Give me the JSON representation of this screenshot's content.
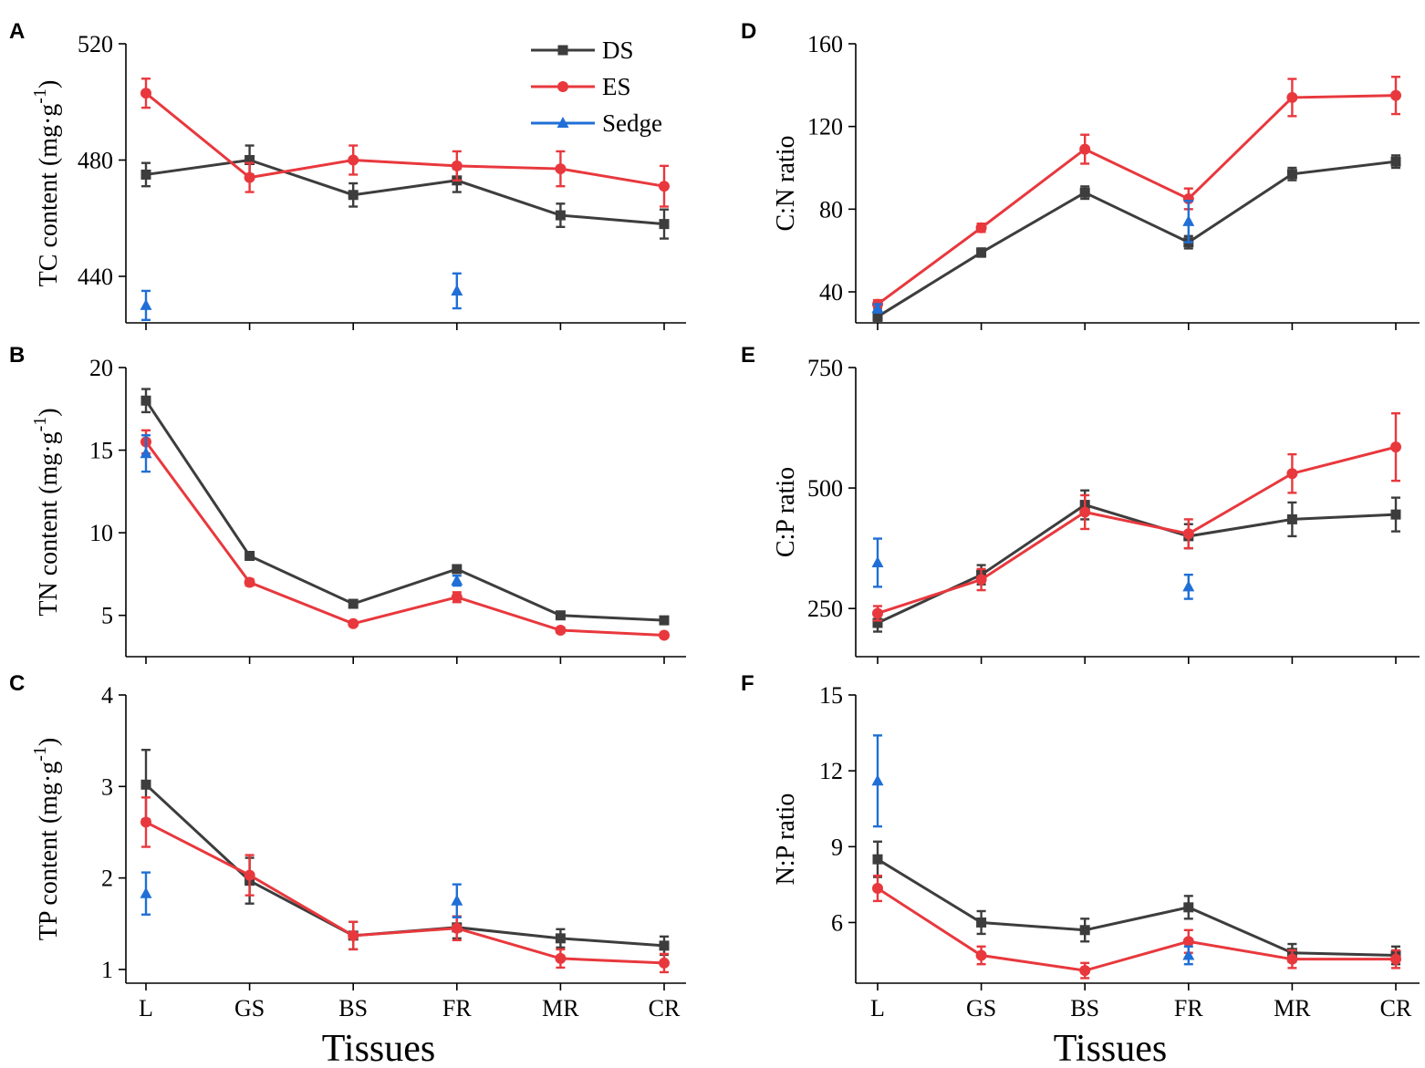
{
  "colors": {
    "DS": "#3d3d3d",
    "ES": "#e8383d",
    "Sedge": "#1f6fd6",
    "axis": "#000000"
  },
  "legend": [
    {
      "name": "DS",
      "marker": "square"
    },
    {
      "name": "ES",
      "marker": "circle"
    },
    {
      "name": "Sedge",
      "marker": "triangle"
    }
  ],
  "chart_data": [
    {
      "type": "line",
      "panel": "A",
      "ylabel_parts": [
        "TC content (mg·g",
        "-1",
        ")"
      ],
      "xlabel": "",
      "categories": [
        "L",
        "GS",
        "BS",
        "FR",
        "MR",
        "CR"
      ],
      "ylim": [
        424,
        520
      ],
      "yticks": [
        440,
        480,
        520
      ],
      "series": [
        {
          "name": "DS",
          "values": [
            475,
            480,
            468,
            473,
            461,
            458
          ],
          "errors": [
            4,
            5,
            4,
            4,
            4,
            5
          ]
        },
        {
          "name": "ES",
          "values": [
            503,
            474,
            480,
            478,
            477,
            471
          ],
          "errors": [
            5,
            5,
            5,
            5,
            6,
            7
          ]
        },
        {
          "name": "Sedge",
          "values": [
            430,
            null,
            null,
            435,
            null,
            null
          ],
          "errors": [
            5,
            null,
            null,
            6,
            null,
            null
          ]
        }
      ]
    },
    {
      "type": "line",
      "panel": "B",
      "ylabel_parts": [
        "TN content (mg·g",
        "-1",
        ")"
      ],
      "xlabel": "",
      "categories": [
        "L",
        "GS",
        "BS",
        "FR",
        "MR",
        "CR"
      ],
      "ylim": [
        2.5,
        20
      ],
      "yticks": [
        5,
        10,
        15,
        20
      ],
      "series": [
        {
          "name": "DS",
          "values": [
            18.0,
            8.6,
            5.7,
            7.8,
            5.0,
            4.7
          ],
          "errors": [
            0.7,
            0.2,
            0.2,
            0.2,
            0.15,
            0.15
          ]
        },
        {
          "name": "ES",
          "values": [
            15.5,
            7.0,
            4.5,
            6.1,
            4.1,
            3.8
          ],
          "errors": [
            0.7,
            0.2,
            0.15,
            0.3,
            0.15,
            0.15
          ]
        },
        {
          "name": "Sedge",
          "values": [
            14.8,
            null,
            null,
            7.1,
            null,
            null
          ],
          "errors": [
            1.1,
            null,
            null,
            0.3,
            null,
            null
          ]
        }
      ]
    },
    {
      "type": "line",
      "panel": "C",
      "ylabel_parts": [
        "TP content (mg·g",
        "-1",
        ")"
      ],
      "xlabel": "Tissues",
      "categories": [
        "L",
        "GS",
        "BS",
        "FR",
        "MR",
        "CR"
      ],
      "ylim": [
        0.85,
        4
      ],
      "yticks": [
        1,
        2,
        3,
        4
      ],
      "series": [
        {
          "name": "DS",
          "values": [
            3.02,
            1.97,
            1.37,
            1.46,
            1.34,
            1.26
          ],
          "errors": [
            0.38,
            0.25,
            0.15,
            0.12,
            0.1,
            0.1
          ]
        },
        {
          "name": "ES",
          "values": [
            2.61,
            2.03,
            1.37,
            1.45,
            1.12,
            1.07
          ],
          "errors": [
            0.27,
            0.22,
            0.15,
            0.13,
            0.1,
            0.1
          ]
        },
        {
          "name": "Sedge",
          "values": [
            1.83,
            null,
            null,
            1.75,
            null,
            null
          ],
          "errors": [
            0.23,
            null,
            null,
            0.18,
            null,
            null
          ]
        }
      ]
    },
    {
      "type": "line",
      "panel": "D",
      "ylabel_parts": [
        "C:N ratio",
        "",
        ""
      ],
      "xlabel": "",
      "categories": [
        "L",
        "GS",
        "BS",
        "FR",
        "MR",
        "CR"
      ],
      "ylim": [
        25,
        160
      ],
      "yticks": [
        40,
        80,
        120,
        160
      ],
      "series": [
        {
          "name": "DS",
          "values": [
            28,
            59,
            88,
            64,
            97,
            103
          ],
          "errors": [
            2,
            2,
            3,
            3,
            3,
            3
          ]
        },
        {
          "name": "ES",
          "values": [
            34,
            71,
            109,
            85,
            134,
            135
          ],
          "errors": [
            2,
            2,
            7,
            5,
            9,
            9
          ]
        },
        {
          "name": "Sedge",
          "values": [
            32,
            null,
            null,
            74,
            null,
            null
          ],
          "errors": [
            2,
            null,
            null,
            10,
            null,
            null
          ]
        }
      ]
    },
    {
      "type": "line",
      "panel": "E",
      "ylabel_parts": [
        "C:P ratio",
        "",
        ""
      ],
      "xlabel": "",
      "categories": [
        "L",
        "GS",
        "BS",
        "FR",
        "MR",
        "CR"
      ],
      "ylim": [
        150,
        750
      ],
      "yticks": [
        250,
        500,
        750
      ],
      "series": [
        {
          "name": "DS",
          "values": [
            220,
            320,
            465,
            400,
            435,
            445
          ],
          "errors": [
            18,
            20,
            30,
            25,
            35,
            35
          ]
        },
        {
          "name": "ES",
          "values": [
            240,
            310,
            450,
            405,
            530,
            585
          ],
          "errors": [
            15,
            22,
            35,
            30,
            40,
            70
          ]
        },
        {
          "name": "Sedge",
          "values": [
            345,
            null,
            null,
            295,
            null,
            null
          ],
          "errors": [
            50,
            null,
            null,
            25,
            null,
            null
          ]
        }
      ]
    },
    {
      "type": "line",
      "panel": "F",
      "ylabel_parts": [
        "N:P ratio",
        "",
        ""
      ],
      "xlabel": "Tissues",
      "categories": [
        "L",
        "GS",
        "BS",
        "FR",
        "MR",
        "CR"
      ],
      "ylim": [
        3.6,
        15
      ],
      "yticks": [
        6,
        9,
        12,
        15
      ],
      "series": [
        {
          "name": "DS",
          "values": [
            8.5,
            6.0,
            5.7,
            6.6,
            4.8,
            4.7
          ],
          "errors": [
            0.7,
            0.45,
            0.45,
            0.45,
            0.35,
            0.35
          ]
        },
        {
          "name": "ES",
          "values": [
            7.35,
            4.7,
            4.1,
            5.25,
            4.55,
            4.55
          ],
          "errors": [
            0.5,
            0.35,
            0.3,
            0.45,
            0.35,
            0.35
          ]
        },
        {
          "name": "Sedge",
          "values": [
            11.6,
            null,
            null,
            4.7,
            null,
            null
          ],
          "errors": [
            1.8,
            null,
            null,
            0.35,
            null,
            null
          ]
        }
      ]
    }
  ]
}
